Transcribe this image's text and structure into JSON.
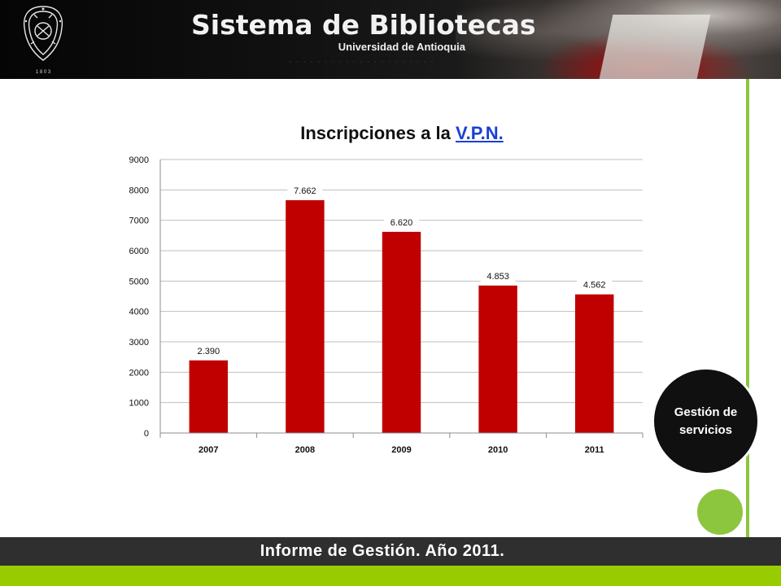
{
  "header": {
    "title": "Sistema de Bibliotecas",
    "subtitle": "Universidad de Antioquia",
    "seal_year": "1 8 0 3"
  },
  "chart_title": {
    "prefix": "Inscripciones a la",
    "link": "V.P.N."
  },
  "side_badge": {
    "label": "Gestión de servicios"
  },
  "footer": {
    "text": "Informe de Gestión. Año 2011."
  },
  "colors": {
    "bar": "#c00000",
    "accent_green": "#8cc63f",
    "footer_green": "#99cc00",
    "footer_dark": "#2f2f2f"
  },
  "chart_data": {
    "type": "bar",
    "title": "Inscripciones a la V.P.N.",
    "categories": [
      "2007",
      "2008",
      "2009",
      "2010",
      "2011"
    ],
    "values": [
      2390,
      7662,
      6620,
      4853,
      4562
    ],
    "data_labels": [
      "2.390",
      "7.662",
      "6.620",
      "4.853",
      "4.562"
    ],
    "yticks": [
      0,
      1000,
      2000,
      3000,
      4000,
      5000,
      6000,
      7000,
      8000,
      9000
    ],
    "ylim": [
      0,
      9000
    ],
    "grid": true,
    "legend": "none",
    "xlabel": "",
    "ylabel": ""
  }
}
